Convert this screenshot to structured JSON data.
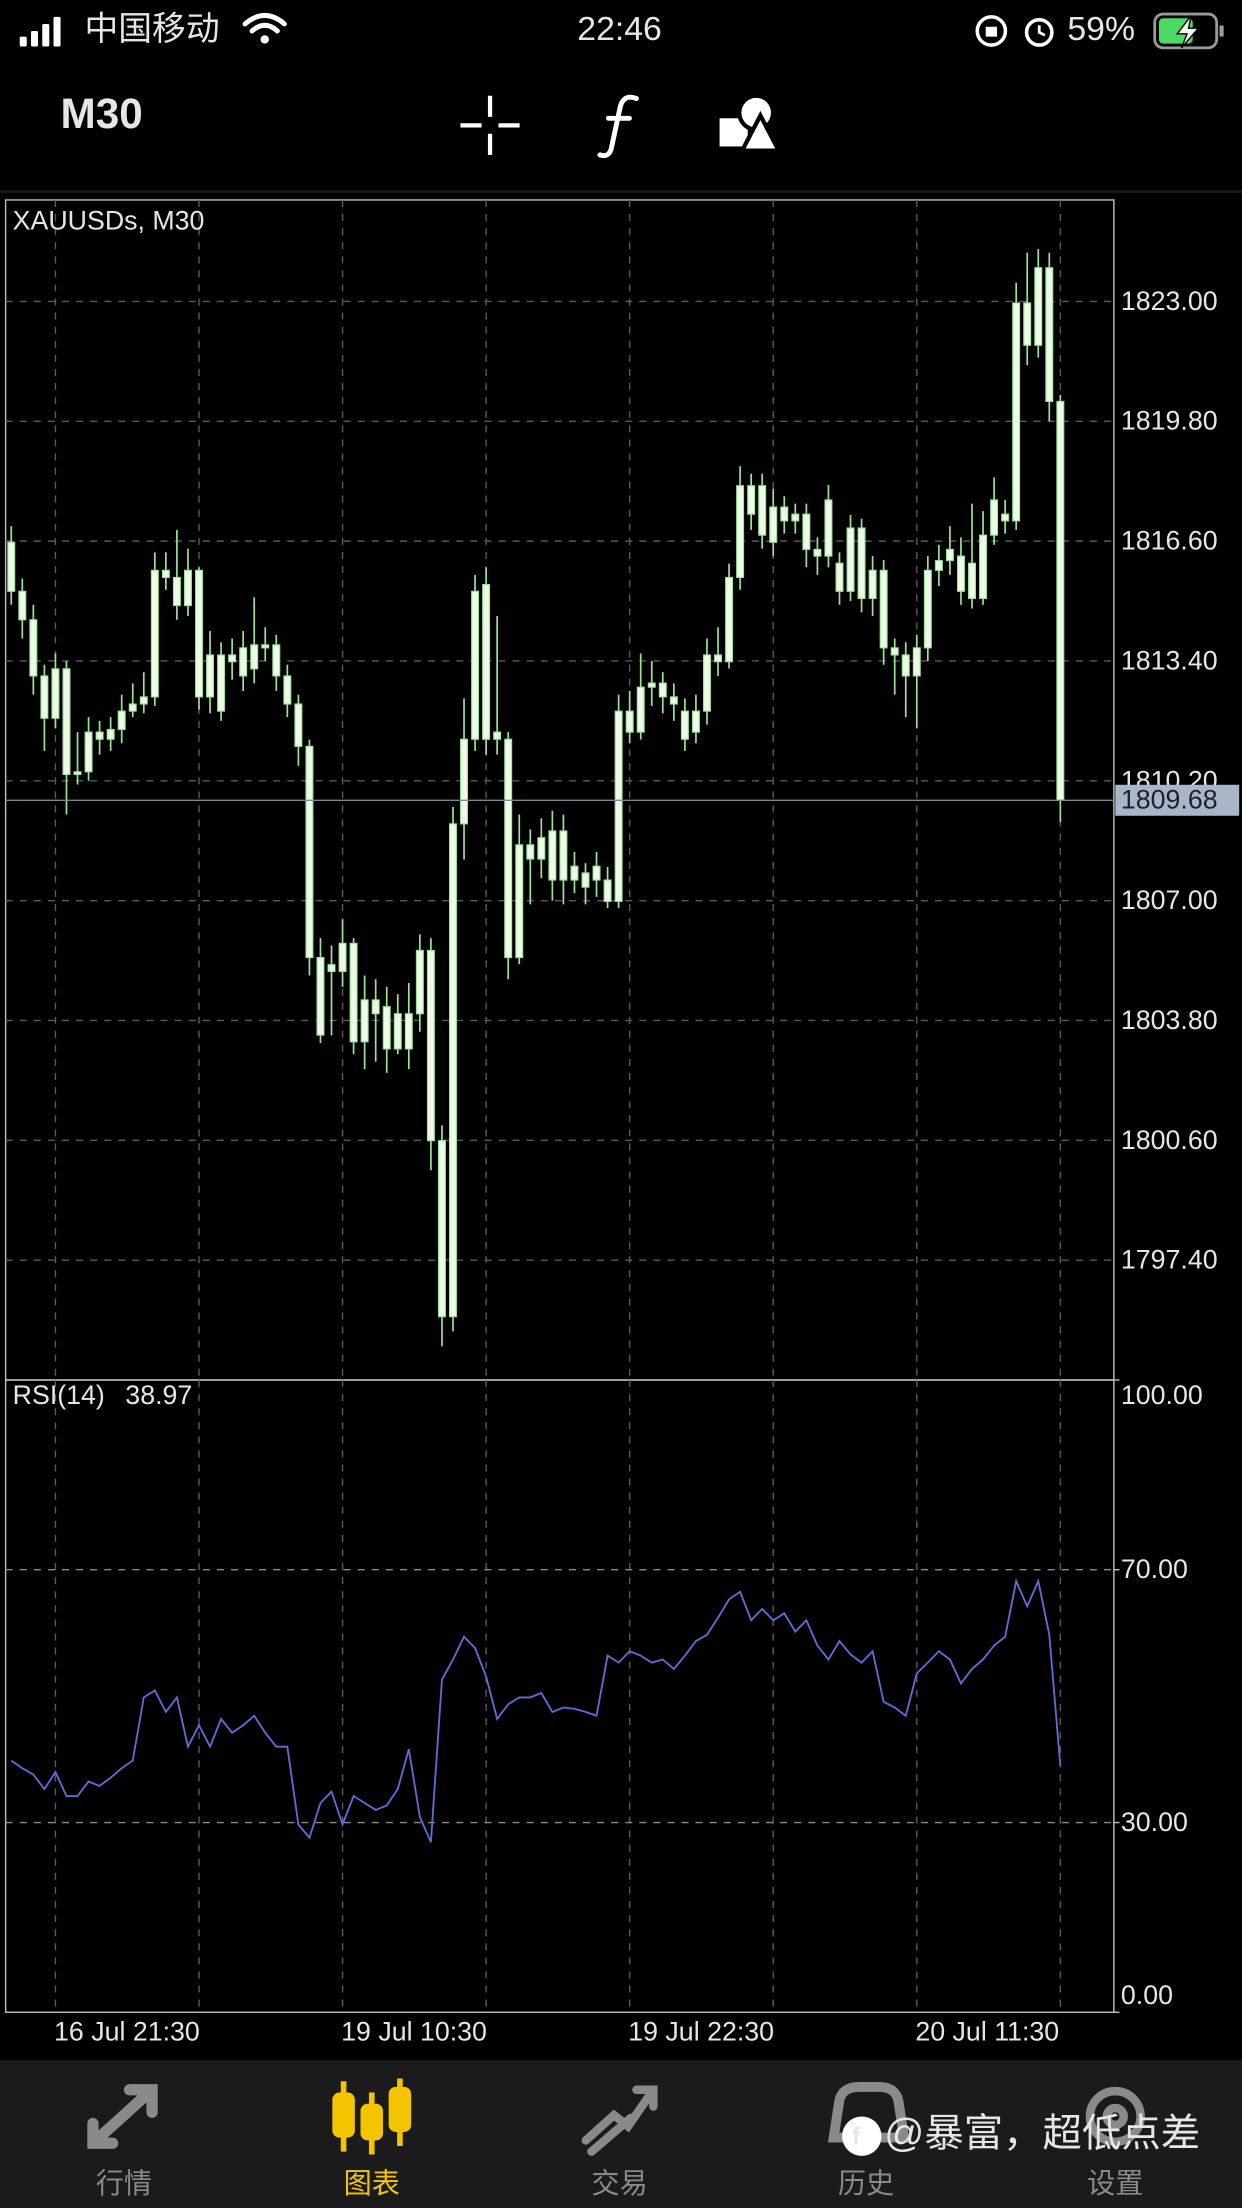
{
  "status_bar": {
    "carrier": "中国移动",
    "time": "22:46",
    "battery": "59%"
  },
  "toolbar": {
    "timeframe": "M30"
  },
  "chart_data": {
    "type": "candlestick",
    "title": "XAUUSDs, M30",
    "color": "#9be39b",
    "categories": [
      null,
      null,
      null,
      null,
      "16 Jul 21:30",
      null,
      null,
      null,
      null,
      null,
      null,
      null,
      null,
      null,
      null,
      null,
      null,
      null,
      null,
      null,
      null,
      null,
      null,
      null,
      null,
      null,
      null,
      null,
      null,
      null,
      "19 Jul 10:30",
      null,
      null,
      null,
      null,
      null,
      null,
      null,
      null,
      null,
      null,
      null,
      null,
      null,
      null,
      null,
      null,
      null,
      null,
      null,
      null,
      null,
      null,
      null,
      null,
      null,
      "19 Jul 22:30",
      null,
      null,
      null,
      null,
      null,
      null,
      null,
      null,
      null,
      null,
      null,
      null,
      null,
      null,
      null,
      null,
      null,
      null,
      null,
      null,
      null,
      null,
      null,
      null,
      null,
      "20 Jul 11:30",
      null,
      null,
      null,
      null,
      null,
      null,
      null,
      null,
      null,
      null,
      null,
      null,
      null
    ],
    "open": [
      1816.57,
      1815.26,
      1814.5,
      1813.0,
      1811.87,
      1813.19,
      1810.37,
      1810.44,
      1811.5,
      1811.31,
      1811.57,
      1812.06,
      1812.25,
      1812.44,
      1815.82,
      1815.63,
      1814.88,
      1815.82,
      1812.44,
      1813.56,
      1813.38,
      1813.0,
      1813.19,
      1813.83,
      1813.83,
      1813.0,
      1812.25,
      1811.12,
      1805.48,
      1805.11,
      1805.11,
      1805.86,
      1803.23,
      1804.35,
      1804.17,
      1803.04,
      1803.98,
      1803.98,
      1805.67,
      1800.59,
      1795.89,
      1809.05,
      1811.31,
      1815.44,
      1811.5,
      1811.31,
      1805.48,
      1808.49,
      1808.11,
      1808.86,
      1807.55,
      1807.92,
      1807.74,
      1807.55,
      1807.55,
      1806.98,
      1812.06,
      1811.5,
      1812.7,
      1812.81,
      1812.44,
      1812.06,
      1811.5,
      1812.06,
      1813.56,
      1813.38,
      1815.63,
      1818.08,
      1818.08,
      1816.57,
      1817.51,
      1817.32,
      1817.32,
      1816.38,
      1816.2,
      1816.01,
      1815.26,
      1816.95,
      1815.82,
      1815.82,
      1813.75,
      1813.56,
      1813.0,
      1813.75,
      1815.82,
      1816.08,
      1816.2,
      1815.07,
      1815.07,
      1816.76,
      1817.32,
      1817.14,
      1822.96,
      1821.83,
      1823.9,
      1820.33
    ],
    "high": [
      1817.0,
      1815.6,
      1814.9,
      1813.3,
      1813.6,
      1813.4,
      1811.5,
      1811.9,
      1811.8,
      1811.9,
      1812.5,
      1812.8,
      1813.1,
      1816.3,
      1816.3,
      1816.9,
      1816.4,
      1815.9,
      1814.2,
      1813.9,
      1814.0,
      1814.2,
      1815.1,
      1814.3,
      1814.1,
      1813.3,
      1812.5,
      1811.3,
      1806.0,
      1805.8,
      1806.5,
      1806.0,
      1805.0,
      1804.9,
      1804.7,
      1804.5,
      1804.8,
      1806.1,
      1806.0,
      1801.0,
      1809.5,
      1812.4,
      1815.7,
      1815.9,
      1814.6,
      1811.5,
      1809.3,
      1808.9,
      1809.2,
      1809.4,
      1809.3,
      1808.3,
      1808.0,
      1808.3,
      1807.9,
      1812.5,
      1812.6,
      1813.6,
      1813.4,
      1813.1,
      1812.8,
      1812.4,
      1812.5,
      1814.0,
      1814.3,
      1816.0,
      1818.6,
      1818.4,
      1818.4,
      1818.0,
      1817.8,
      1817.6,
      1817.6,
      1816.7,
      1818.1,
      1816.3,
      1817.3,
      1817.2,
      1816.2,
      1816.1,
      1814.0,
      1813.9,
      1814.1,
      1816.2,
      1816.5,
      1817.0,
      1816.7,
      1817.6,
      1817.4,
      1818.3,
      1817.7,
      1823.5,
      1824.3,
      1824.4,
      1824.3,
      1820.5
    ],
    "low": [
      1814.9,
      1814.0,
      1812.5,
      1811.0,
      1811.6,
      1809.3,
      1810.1,
      1810.2,
      1810.9,
      1811.0,
      1811.2,
      1811.9,
      1812.0,
      1812.2,
      1815.3,
      1814.5,
      1814.6,
      1812.1,
      1812.0,
      1811.8,
      1812.9,
      1812.6,
      1812.8,
      1813.4,
      1812.6,
      1811.9,
      1810.6,
      1805.0,
      1803.2,
      1803.4,
      1804.7,
      1802.9,
      1802.5,
      1802.7,
      1802.4,
      1802.9,
      1802.5,
      1803.5,
      1799.8,
      1795.1,
      1795.5,
      1808.1,
      1811.0,
      1810.9,
      1810.9,
      1804.9,
      1805.3,
      1806.9,
      1807.6,
      1807.0,
      1806.9,
      1807.2,
      1806.9,
      1807.1,
      1806.8,
      1806.8,
      1811.2,
      1811.3,
      1812.2,
      1812.0,
      1811.8,
      1811.0,
      1811.2,
      1811.7,
      1813.0,
      1813.2,
      1815.3,
      1816.9,
      1816.4,
      1816.2,
      1816.8,
      1816.8,
      1815.9,
      1815.7,
      1815.9,
      1814.9,
      1815.0,
      1814.7,
      1814.6,
      1813.3,
      1812.5,
      1811.9,
      1811.6,
      1813.4,
      1815.4,
      1815.7,
      1814.9,
      1814.8,
      1814.9,
      1816.5,
      1816.8,
      1816.9,
      1821.3,
      1821.5,
      1819.8,
      1809.1
    ],
    "close": [
      1815.26,
      1814.5,
      1813.0,
      1811.87,
      1813.19,
      1810.37,
      1810.44,
      1811.5,
      1811.31,
      1811.57,
      1812.06,
      1812.25,
      1812.44,
      1815.82,
      1815.63,
      1814.88,
      1815.82,
      1812.44,
      1813.56,
      1812.06,
      1813.56,
      1813.75,
      1813.83,
      1813.75,
      1813.0,
      1812.25,
      1811.12,
      1805.48,
      1803.41,
      1805.29,
      1805.86,
      1803.23,
      1804.35,
      1803.98,
      1803.04,
      1803.98,
      1803.04,
      1805.67,
      1800.59,
      1795.89,
      1809.05,
      1811.31,
      1815.26,
      1811.31,
      1811.31,
      1805.48,
      1808.49,
      1808.11,
      1808.68,
      1807.55,
      1808.86,
      1807.55,
      1807.36,
      1807.92,
      1806.98,
      1812.06,
      1811.5,
      1812.7,
      1812.81,
      1812.44,
      1812.25,
      1811.31,
      1812.06,
      1813.56,
      1813.38,
      1815.63,
      1818.08,
      1817.32,
      1816.76,
      1817.51,
      1817.14,
      1817.14,
      1816.38,
      1816.2,
      1817.7,
      1815.26,
      1816.95,
      1815.07,
      1815.07,
      1813.75,
      1813.56,
      1813.0,
      1813.75,
      1815.82,
      1816.08,
      1816.38,
      1815.26,
      1816.01,
      1816.76,
      1817.7,
      1817.14,
      1822.96,
      1821.83,
      1823.9,
      1820.33,
      1809.68
    ],
    "ylim": [
      1794.2,
      1825.71
    ],
    "yticks": [
      {
        "value": 1823,
        "label": "1823.00"
      },
      {
        "value": 1819.8,
        "label": "1819.80"
      },
      {
        "value": 1816.6,
        "label": "1816.60"
      },
      {
        "value": 1813.4,
        "label": "1813.40"
      },
      {
        "value": 1810.2,
        "label": "1810.20"
      },
      {
        "value": 1807,
        "label": "1807.00"
      },
      {
        "value": 1803.8,
        "label": "1803.80"
      },
      {
        "value": 1800.6,
        "label": "1800.60"
      },
      {
        "value": 1797.4,
        "label": "1797.40"
      }
    ],
    "grid": true,
    "indicator": {
      "type": "line",
      "name": "RSI(14)",
      "color": "#5b6fd6",
      "values": [
        39.8,
        38.6,
        37.6,
        35.3,
        38.0,
        34.2,
        34.2,
        36.5,
        35.8,
        37.1,
        38.6,
        39.8,
        49.8,
        50.9,
        47.5,
        49.8,
        42.0,
        45.4,
        42.0,
        46.4,
        44.2,
        45.4,
        46.9,
        44.2,
        42.0,
        42.0,
        29.7,
        27.6,
        33.1,
        34.9,
        29.7,
        34.2,
        33.1,
        32.0,
        32.7,
        35.3,
        41.6,
        30.9,
        26.9,
        52.6,
        55.8,
        59.4,
        57.6,
        53.1,
        46.4,
        48.7,
        49.8,
        49.8,
        50.5,
        47.5,
        48.2,
        48.0,
        47.5,
        46.9,
        56.4,
        55.3,
        57.1,
        56.4,
        55.3,
        55.8,
        54.3,
        56.4,
        58.7,
        59.7,
        62.4,
        65.3,
        66.5,
        62.0,
        63.8,
        62.0,
        63.1,
        60.2,
        62.0,
        58.0,
        55.8,
        58.7,
        56.6,
        55.3,
        57.1,
        49.1,
        48.2,
        46.9,
        53.6,
        55.3,
        57.1,
        55.8,
        52.0,
        54.3,
        55.8,
        58.0,
        59.4,
        68.2,
        64.2,
        68.2,
        59.7,
        38.97
      ],
      "ylim": [
        0,
        100
      ],
      "yticks": [
        {
          "value": 100,
          "label": "100.00"
        },
        {
          "value": 70,
          "label": "70.00"
        },
        {
          "value": 30,
          "label": "30.00"
        },
        {
          "value": 0,
          "label": "0.00"
        }
      ],
      "levels": [
        70,
        30
      ]
    }
  },
  "tab_bar": {
    "tabs": [
      "行情",
      "图表",
      "交易",
      "历史",
      "设置"
    ],
    "active": 1
  },
  "watermark": "@暴富，超低点差"
}
